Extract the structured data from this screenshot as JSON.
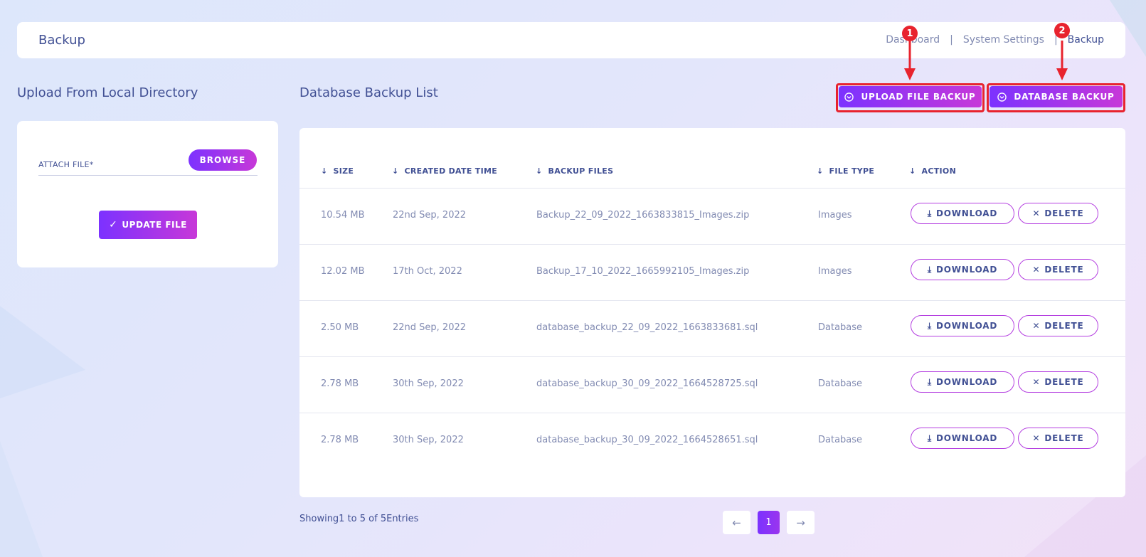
{
  "header": {
    "title": "Backup",
    "breadcrumb": [
      "Dashboard",
      "System Settings",
      "Backup"
    ],
    "separator": "|"
  },
  "left": {
    "section_title": "Upload From Local Directory",
    "attach_label": "ATTACH FILE*",
    "browse_label": "BROWSE",
    "update_label": "UPDATE FILE"
  },
  "main": {
    "section_title": "Database Backup List",
    "upload_file_backup_label": "UPLOAD FILE BACKUP",
    "database_backup_label": "DATABASE BACKUP",
    "annotations": [
      "1",
      "2"
    ],
    "columns": [
      "SIZE",
      "CREATED DATE TIME",
      "BACKUP FILES",
      "FILE TYPE",
      "ACTION"
    ],
    "rows": [
      {
        "size": "10.54 MB",
        "date": "22nd Sep, 2022",
        "file": "Backup_22_09_2022_1663833815_Images.zip",
        "type": "Images"
      },
      {
        "size": "12.02 MB",
        "date": "17th Oct, 2022",
        "file": "Backup_17_10_2022_1665992105_Images.zip",
        "type": "Images"
      },
      {
        "size": "2.50 MB",
        "date": "22nd Sep, 2022",
        "file": "database_backup_22_09_2022_1663833681.sql",
        "type": "Database"
      },
      {
        "size": "2.78 MB",
        "date": "30th Sep, 2022",
        "file": "database_backup_30_09_2022_1664528725.sql",
        "type": "Database"
      },
      {
        "size": "2.78 MB",
        "date": "30th Sep, 2022",
        "file": "database_backup_30_09_2022_1664528651.sql",
        "type": "Database"
      }
    ],
    "download_label": "DOWNLOAD",
    "delete_label": "DELETE"
  },
  "footer": {
    "showing_text": "Showing1 to 5 of 5Entries",
    "current_page": "1"
  },
  "icons": {
    "sort": "arrow-down-icon",
    "prev": "arrow-left-icon",
    "next": "arrow-right-icon"
  },
  "colors": {
    "accent_start": "#7c32ff",
    "accent_end": "#c738d8",
    "annotation": "#e8232e",
    "text": "#415094",
    "muted": "#828bb2"
  }
}
